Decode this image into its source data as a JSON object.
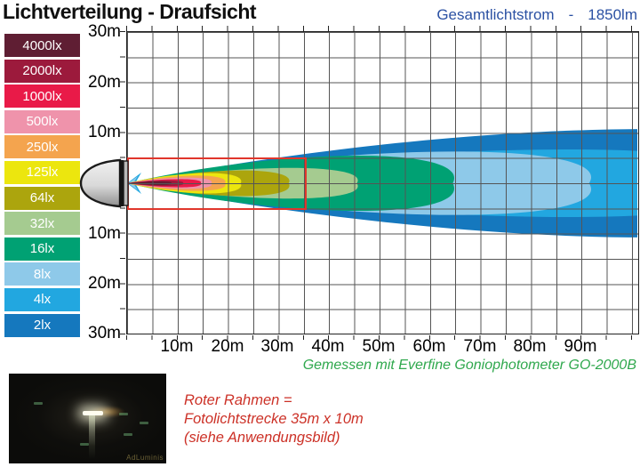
{
  "title": "Lichtverteilung - Draufsicht",
  "header": {
    "label": "Gesamtlichtstrom",
    "dash": "-",
    "value": "1850lm"
  },
  "legend": {
    "items": [
      {
        "label": "4000lx",
        "color": "#5f1e33"
      },
      {
        "label": "2000lx",
        "color": "#9c1a3c"
      },
      {
        "label": "1000lx",
        "color": "#e91a48"
      },
      {
        "label": "500lx",
        "color": "#ef93ab"
      },
      {
        "label": "250lx",
        "color": "#f4a44e"
      },
      {
        "label": "125lx",
        "color": "#ece60e"
      },
      {
        "label": "64lx",
        "color": "#aca50d"
      },
      {
        "label": "32lx",
        "color": "#a5cb90"
      },
      {
        "label": "16lx",
        "color": "#00a173"
      },
      {
        "label": "8lx",
        "color": "#8ec9e9"
      },
      {
        "label": "4lx",
        "color": "#22a7e0"
      },
      {
        "label": "2lx",
        "color": "#1578be"
      }
    ]
  },
  "chart_data": {
    "type": "isolux-contour-map",
    "title": "Lichtverteilung - Draufsicht",
    "total_luminous_flux": "1850lm",
    "x_axis": {
      "unit": "m",
      "range_m": [
        0,
        101
      ],
      "grid_step_m": 5,
      "tick_labels": [
        "10m",
        "20m",
        "30m",
        "40m",
        "50m",
        "60m",
        "70m",
        "80m",
        "90m"
      ]
    },
    "y_axis": {
      "unit": "m",
      "range_m": [
        -30,
        30
      ],
      "grid_step_m": 5,
      "tick_labels_top": [
        "30m",
        "20m",
        "10m"
      ],
      "tick_labels_bottom": [
        "10m",
        "20m",
        "30m"
      ]
    },
    "contours": [
      {
        "lux": "2lx",
        "reach_m": 145,
        "half_width_m": 10.6,
        "color": "#1578be",
        "clipped_at_chart_edge": true
      },
      {
        "lux": "4lx",
        "reach_m": 123,
        "half_width_m": 6.6,
        "color": "#22a7e0",
        "clipped_at_chart_edge": true
      },
      {
        "lux": "8lx",
        "reach_m": 91.5,
        "half_width_m": 6.2,
        "color": "#8ec9e9"
      },
      {
        "lux": "16lx",
        "reach_m": 64.5,
        "half_width_m": 5.4,
        "color": "#00a173"
      },
      {
        "lux": "32lx",
        "reach_m": 45.5,
        "half_width_m": 3.0,
        "color": "#a5cb90"
      },
      {
        "lux": "64lx",
        "reach_m": 32.0,
        "half_width_m": 2.5,
        "color": "#aca50d"
      },
      {
        "lux": "125lx",
        "reach_m": 22.5,
        "half_width_m": 2.0,
        "color": "#ece60e"
      },
      {
        "lux": "250lx",
        "reach_m": 19.4,
        "half_width_m": 1.5,
        "color": "#f4a44e"
      },
      {
        "lux": "500lx",
        "reach_m": 16.7,
        "half_width_m": 1.1,
        "color": "#ef93ab"
      },
      {
        "lux": "1000lx",
        "reach_m": 14.6,
        "half_width_m": 0.8,
        "color": "#e91a48"
      },
      {
        "lux": "2000lx",
        "reach_m": 11.1,
        "half_width_m": 0.55,
        "color": "#9c1a3c"
      },
      {
        "lux": "4000lx",
        "reach_m": 8.8,
        "half_width_m": 0.35,
        "color": "#5f1e33"
      }
    ],
    "red_frame": {
      "width_m": 35,
      "height_m": 10,
      "color": "#e0362c",
      "meaning": "Fotolichtstrecke 35m x 10m"
    }
  },
  "footer": {
    "measured_with": "Gemessen mit Everfine Goniophotometer GO-2000B",
    "red_note_lines": [
      "Roter Rahmen =",
      "Fotolichtstrecke 35m x 10m",
      "(siehe Anwendungsbild)"
    ]
  },
  "photo": {
    "watermark": "AdLuminis"
  }
}
